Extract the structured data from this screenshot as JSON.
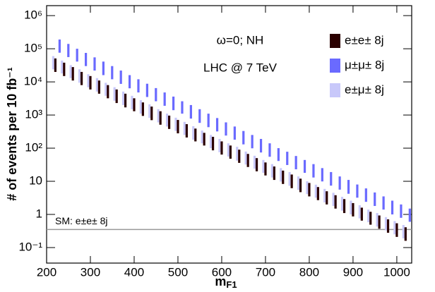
{
  "chart_data": {
    "type": "range-bar",
    "ylabel": "# of events per 10 fb⁻¹",
    "xlabel": "m",
    "xlabel_sub": "F1",
    "annotations": [
      "ω=0;  NH",
      "LHC @ 7 TeV"
    ],
    "reference_line": {
      "label": "SM: e±e± 8j",
      "value": 0.35,
      "color": "#999999"
    },
    "xlim": [
      200,
      1034
    ],
    "xticks": [
      200,
      300,
      400,
      500,
      600,
      700,
      800,
      900,
      1000
    ],
    "ylim": [
      0.034,
      2000000
    ],
    "log_y": true,
    "yticks": [
      {
        "value": 0.1,
        "label": "10⁻¹"
      },
      1,
      10,
      {
        "value": 100,
        "label": "10²"
      },
      {
        "value": 1000,
        "label": "10³"
      },
      {
        "value": 10000,
        "label": "10⁴"
      },
      {
        "value": 100000,
        "label": "10⁵"
      },
      {
        "value": 1000000,
        "label": "10⁶"
      }
    ],
    "legend": "top-right",
    "x": [
      220,
      240,
      260,
      280,
      300,
      320,
      340,
      360,
      380,
      400,
      420,
      440,
      460,
      480,
      500,
      520,
      540,
      560,
      580,
      600,
      620,
      640,
      660,
      680,
      700,
      720,
      740,
      760,
      780,
      800,
      820,
      840,
      860,
      880,
      900,
      920,
      940,
      960,
      980,
      1000,
      1020
    ],
    "series": [
      {
        "name": "e±e± 8j",
        "color": "#2b0000",
        "low": [
          20000,
          15000,
          11000,
          8000,
          5900,
          4400,
          3200,
          2300,
          1700,
          1300,
          940,
          700,
          510,
          380,
          280,
          210,
          160,
          120,
          86,
          64,
          48,
          36,
          27,
          20,
          15,
          11,
          8.3,
          6.2,
          4.7,
          3.5,
          2.7,
          2.0,
          1.5,
          1.1,
          0.87,
          0.65,
          0.49,
          0.37,
          0.28,
          0.21,
          0.16
        ],
        "high": [
          51000,
          38000,
          28000,
          20000,
          15000,
          11000,
          8000,
          5900,
          4400,
          3200,
          2400,
          1800,
          1300,
          960,
          710,
          530,
          390,
          290,
          220,
          160,
          120,
          90,
          67,
          50,
          37,
          28,
          21,
          16,
          12,
          8.9,
          6.7,
          5.0,
          3.8,
          2.9,
          2.2,
          1.6,
          1.2,
          0.93,
          0.71,
          0.54,
          0.41
        ]
      },
      {
        "name": "μ±μ± 8j",
        "color": "#6a6aff",
        "low": [
          76000,
          56000,
          41000,
          30000,
          22000,
          16000,
          12000,
          8700,
          6400,
          4800,
          3500,
          2600,
          1900,
          1400,
          1100,
          780,
          580,
          430,
          320,
          240,
          180,
          130,
          99,
          74,
          55,
          41,
          31,
          23,
          18,
          13,
          9.9,
          7.4,
          5.6,
          4.2,
          3.2,
          2.4,
          1.8,
          1.4,
          1.0,
          0.79,
          0.6
        ],
        "high": [
          190000,
          140000,
          100000,
          75000,
          55000,
          41000,
          30000,
          22000,
          16000,
          12000,
          8800,
          6500,
          4800,
          3600,
          2600,
          2000,
          1500,
          1100,
          810,
          600,
          450,
          330,
          250,
          190,
          140,
          100,
          78,
          58,
          44,
          33,
          25,
          19,
          14,
          11,
          8.0,
          6.1,
          4.6,
          3.5,
          2.6,
          2.0,
          1.5
        ]
      },
      {
        "name": "e±μ± 8j",
        "color": "#c8c8fa",
        "low": [
          24000,
          18000,
          13000,
          9400,
          6900,
          5100,
          3800,
          2700,
          2000,
          1500,
          1100,
          820,
          600,
          450,
          330,
          250,
          180,
          140,
          100,
          75,
          56,
          42,
          32,
          24,
          18,
          13,
          9.8,
          7.3,
          5.5,
          4.1,
          3.2,
          2.3,
          1.8,
          1.3,
          1.0,
          0.76,
          0.58,
          0.43,
          0.33,
          0.25,
          0.19
        ],
        "high": [
          60000,
          44000,
          32000,
          24000,
          17000,
          13000,
          9400,
          6900,
          5100,
          3800,
          2800,
          2100,
          1500,
          1100,
          830,
          620,
          460,
          340,
          250,
          190,
          140,
          110,
          79,
          59,
          44,
          33,
          25,
          19,
          14,
          10,
          7.9,
          5.9,
          4.5,
          3.4,
          2.6,
          1.9,
          1.4,
          1.1,
          0.83,
          0.63,
          0.48
        ]
      }
    ]
  }
}
